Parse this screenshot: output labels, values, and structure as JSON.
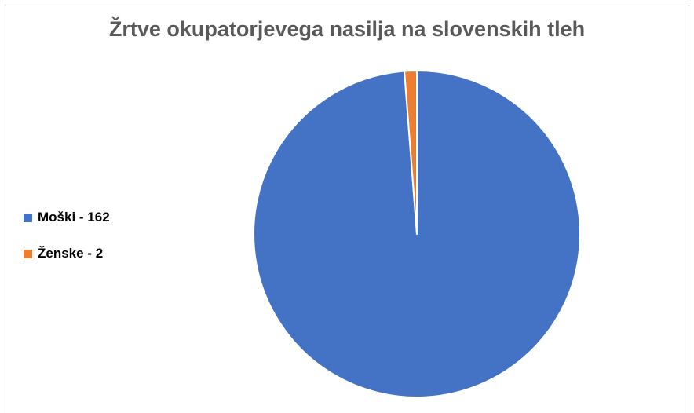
{
  "chart_data": {
    "type": "pie",
    "title": "Žrtve okupatorjevega nasilja na slovenskih tleh",
    "categories": [
      "Moški",
      "Ženske"
    ],
    "values": [
      162,
      2
    ],
    "legend_labels": [
      "Moški - 162",
      "Ženske - 2"
    ],
    "colors": [
      "#4472C4",
      "#ED7D31"
    ],
    "legend_position": "left",
    "start_angle_deg": 0,
    "direction": "clockwise"
  }
}
